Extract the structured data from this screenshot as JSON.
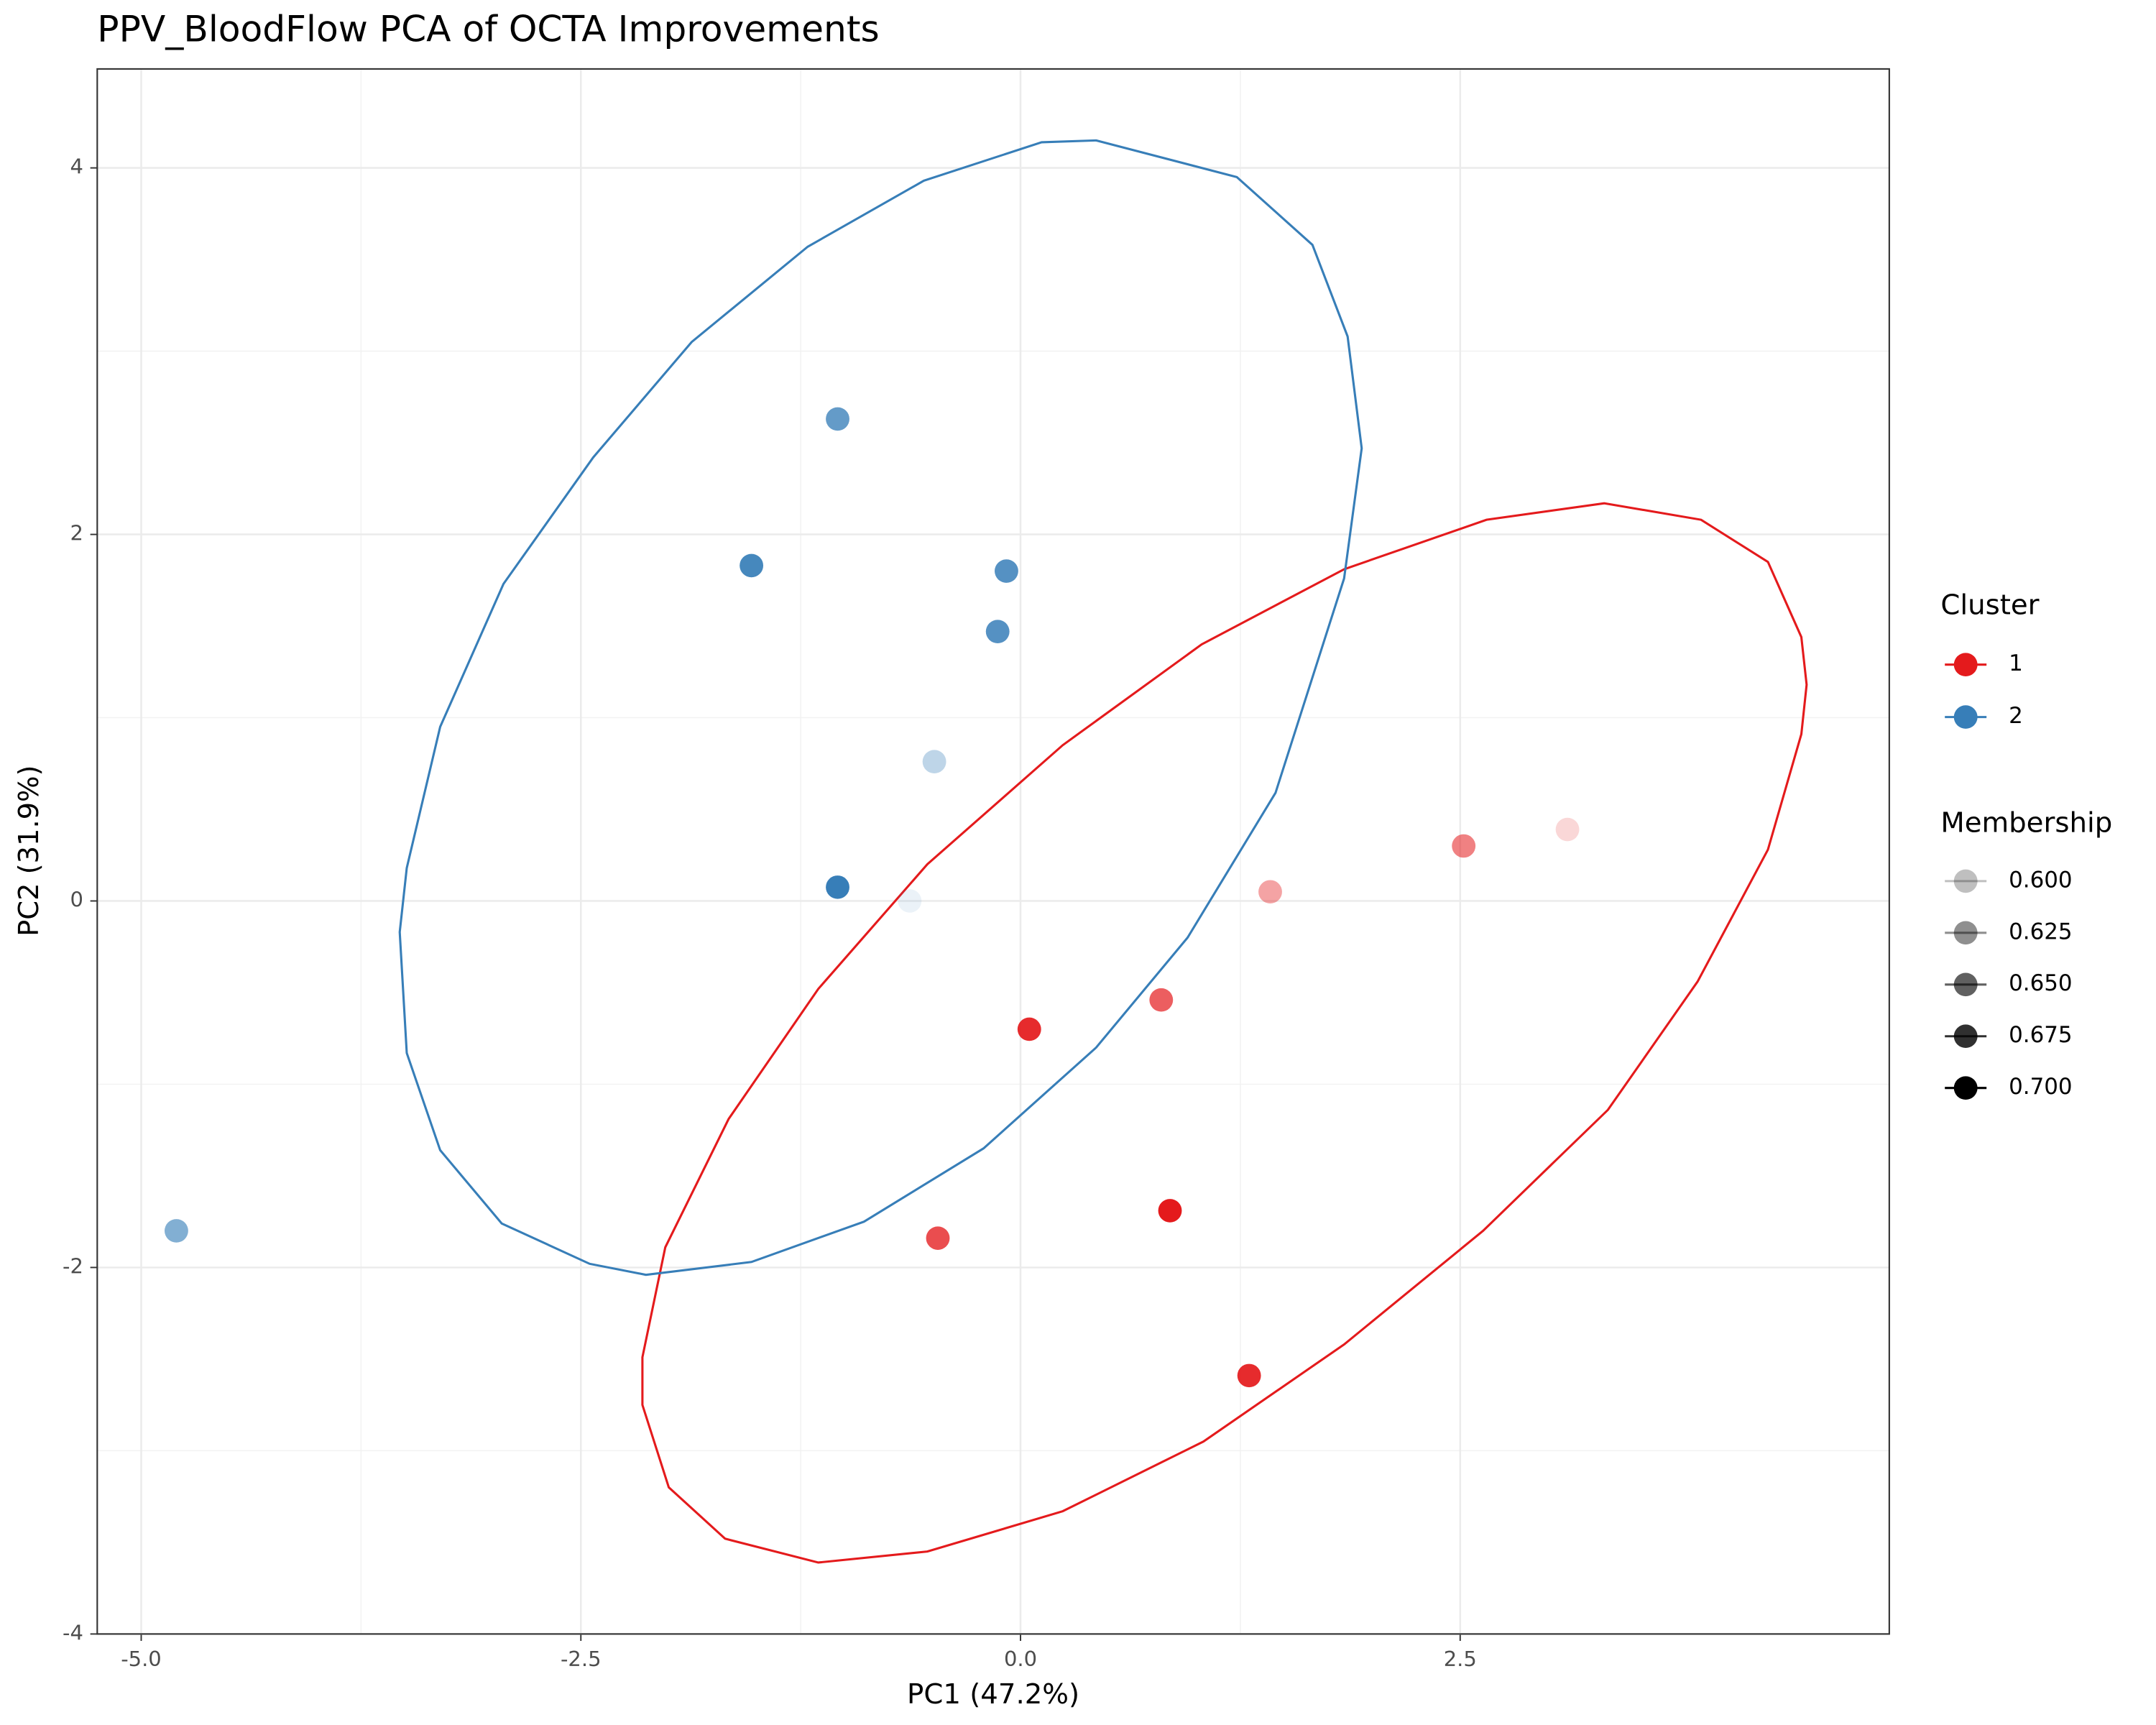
{
  "chart_data": {
    "type": "scatter",
    "title": "PPV_BloodFlow PCA of OCTA Improvements",
    "x_label": "PC1 (47.2%)",
    "y_label": "PC2 (31.9%)",
    "xlim": [
      -5.25,
      4.94
    ],
    "ylim": [
      -4,
      4.54
    ],
    "xticks": [
      {
        "value": -5,
        "label": "-5.0"
      },
      {
        "value": -2.5,
        "label": "-2.5"
      },
      {
        "value": 0,
        "label": "0.0"
      },
      {
        "value": 2.5,
        "label": "2.5"
      }
    ],
    "yticks": [
      -4,
      -2,
      0,
      2,
      4
    ],
    "grid": true,
    "legend_title": "Cluster",
    "series": [
      {
        "name": "1",
        "color": "#e41a1c",
        "x": [
          3.11,
          2.52,
          1.42,
          0.05,
          0.8,
          0.85,
          -0.47,
          1.3
        ],
        "y": [
          0.39,
          0.3,
          0.05,
          -0.7,
          -0.54,
          -1.69,
          -1.84,
          -2.59
        ],
        "membership": [
          0.59,
          0.64,
          0.62,
          0.69,
          0.66,
          0.7,
          0.67,
          0.69
        ],
        "ellipse": {
          "x": [
            3.32,
            3.87,
            4.25,
            4.44,
            4.47,
            4.44,
            4.25,
            3.85,
            3.34,
            2.63,
            1.84,
            1.04,
            0.24,
            -0.53,
            -1.15,
            -1.68,
            -2.0,
            -2.15,
            -2.15,
            -2.02,
            -1.66,
            -1.15,
            -0.53,
            0.24,
            1.03,
            1.84,
            2.65
          ],
          "y": [
            2.17,
            2.08,
            1.85,
            1.44,
            1.18,
            0.91,
            0.28,
            -0.44,
            -1.14,
            -1.8,
            -2.42,
            -2.95,
            -3.33,
            -3.55,
            -3.61,
            -3.48,
            -3.2,
            -2.75,
            -2.49,
            -1.89,
            -1.19,
            -0.48,
            0.2,
            0.85,
            1.4,
            1.81,
            2.08
          ]
        }
      },
      {
        "name": "2",
        "color": "#377eb8",
        "x": [
          -1.04,
          -1.53,
          -0.08,
          -0.13,
          -0.49,
          -1.04,
          -0.63,
          -4.8
        ],
        "y": [
          2.63,
          1.83,
          1.8,
          1.47,
          0.76,
          0.075,
          0.0,
          -1.8
        ],
        "membership": [
          0.67,
          0.69,
          0.68,
          0.68,
          0.61,
          0.7,
          0.58,
          0.65
        ],
        "ellipse": {
          "x": [
            0.43,
            1.23,
            1.66,
            1.86,
            1.94,
            1.84,
            1.45,
            0.95,
            0.43,
            -0.21,
            -0.89,
            -1.53,
            -2.13,
            -2.45,
            -2.95,
            -3.3,
            -3.49,
            -3.53,
            -3.49,
            -3.3,
            -2.94,
            -2.43,
            -1.87,
            -1.21,
            -0.55,
            0.12
          ],
          "y": [
            4.15,
            3.95,
            3.58,
            3.08,
            2.47,
            1.76,
            0.59,
            -0.2,
            -0.8,
            -1.35,
            -1.75,
            -1.97,
            -2.04,
            -1.98,
            -1.76,
            -1.36,
            -0.83,
            -0.17,
            0.18,
            0.95,
            1.73,
            2.42,
            3.05,
            3.57,
            3.93,
            4.14
          ]
        }
      }
    ],
    "membership_legend": {
      "title": "Membership",
      "values": [
        {
          "value": 0.6,
          "label": "0.600"
        },
        {
          "value": 0.625,
          "label": "0.625"
        },
        {
          "value": 0.65,
          "label": "0.650"
        },
        {
          "value": 0.675,
          "label": "0.675"
        },
        {
          "value": 0.7,
          "label": "0.700"
        }
      ]
    }
  }
}
